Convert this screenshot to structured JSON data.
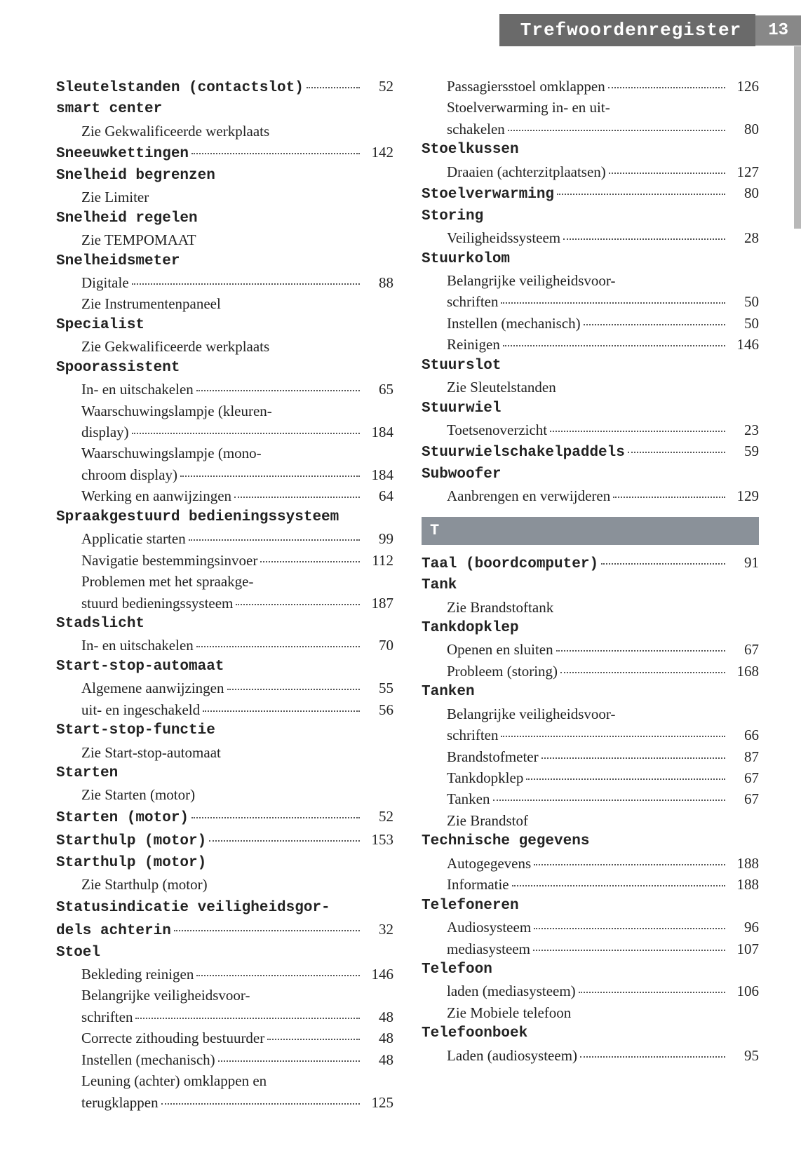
{
  "header": {
    "title": "Trefwoordenregister",
    "page_number": "13"
  },
  "colors": {
    "header_bg": "#6a6a6a",
    "page_bg": "#888888",
    "section_bg": "#8a9199"
  },
  "entries": [
    {
      "type": "line",
      "bold": true,
      "label": "Sleutelstanden (contactslot)",
      "page": "52"
    },
    {
      "type": "head",
      "label": "smart center"
    },
    {
      "type": "sub-nodot",
      "label": "Zie Gekwalificeerde werkplaats"
    },
    {
      "type": "line",
      "bold": true,
      "label": "Sneeuwkettingen",
      "page": "142"
    },
    {
      "type": "head",
      "label": "Snelheid begrenzen"
    },
    {
      "type": "sub-nodot",
      "label": "Zie Limiter"
    },
    {
      "type": "head",
      "label": "Snelheid regelen"
    },
    {
      "type": "sub-nodot",
      "label": "Zie TEMPOMAAT"
    },
    {
      "type": "head",
      "label": "Snelheidsmeter"
    },
    {
      "type": "sub",
      "label": "Digitale",
      "page": "88"
    },
    {
      "type": "sub-nodot",
      "label": "Zie Instrumentenpaneel"
    },
    {
      "type": "head",
      "label": "Specialist"
    },
    {
      "type": "sub-nodot",
      "label": "Zie Gekwalificeerde werkplaats"
    },
    {
      "type": "head",
      "label": "Spoorassistent"
    },
    {
      "type": "sub",
      "label": "In- en uitschakelen",
      "page": "65"
    },
    {
      "type": "wrap",
      "l1": "Waarschuwingslampje (kleuren-",
      "l2": "display)",
      "page": "184"
    },
    {
      "type": "wrap",
      "l1": "Waarschuwingslampje (mono-",
      "l2": "chroom display)",
      "page": "184"
    },
    {
      "type": "sub",
      "label": "Werking en aanwijzingen",
      "page": "64"
    },
    {
      "type": "head",
      "label": "Spraakgestuurd bedieningssysteem"
    },
    {
      "type": "sub",
      "label": "Applicatie starten",
      "page": "99"
    },
    {
      "type": "sub",
      "label": "Navigatie bestemmingsinvoer",
      "page": "112"
    },
    {
      "type": "wrap",
      "l1": "Problemen met het spraakge-",
      "l2": "stuurd bedieningssysteem",
      "page": "187"
    },
    {
      "type": "head",
      "label": "Stadslicht"
    },
    {
      "type": "sub",
      "label": "In- en uitschakelen",
      "page": "70"
    },
    {
      "type": "head",
      "label": "Start-stop-automaat"
    },
    {
      "type": "sub",
      "label": "Algemene aanwijzingen",
      "page": "55"
    },
    {
      "type": "sub",
      "label": "uit- en ingeschakeld",
      "page": "56"
    },
    {
      "type": "head",
      "label": "Start-stop-functie"
    },
    {
      "type": "sub-nodot",
      "label": "Zie Start-stop-automaat"
    },
    {
      "type": "head",
      "label": "Starten"
    },
    {
      "type": "sub-nodot",
      "label": "Zie Starten (motor)"
    },
    {
      "type": "line",
      "bold": true,
      "label": "Starten (motor)",
      "page": "52"
    },
    {
      "type": "line",
      "bold": true,
      "label": "Starthulp (motor)",
      "page": "153"
    },
    {
      "type": "head",
      "label": "Starthulp (motor)"
    },
    {
      "type": "sub-nodot",
      "label": "Zie Starthulp (motor)"
    },
    {
      "type": "wrap-bold",
      "l1": "Statusindicatie veiligheidsgor-",
      "l2": "dels achterin",
      "page": "32"
    },
    {
      "type": "head",
      "label": "Stoel"
    },
    {
      "type": "sub",
      "label": "Bekleding reinigen",
      "page": "146"
    },
    {
      "type": "wrap",
      "l1": "Belangrijke veiligheidsvoor-",
      "l2": "schriften",
      "page": "48"
    },
    {
      "type": "sub",
      "label": "Correcte zithouding bestuurder",
      "page": "48"
    },
    {
      "type": "sub",
      "label": "Instellen (mechanisch)",
      "page": "48"
    },
    {
      "type": "wrap",
      "l1": "Leuning (achter) omklappen en",
      "l2": "terugklappen",
      "page": "125"
    },
    {
      "type": "sub",
      "label": "Passagiersstoel omklappen",
      "page": "126"
    },
    {
      "type": "wrap",
      "l1": "Stoelverwarming in- en uit-",
      "l2": "schakelen",
      "page": "80"
    },
    {
      "type": "head",
      "label": "Stoelkussen"
    },
    {
      "type": "sub",
      "label": "Draaien (achterzitplaatsen)",
      "page": "127"
    },
    {
      "type": "line",
      "bold": true,
      "label": "Stoelverwarming",
      "page": "80"
    },
    {
      "type": "head",
      "label": "Storing"
    },
    {
      "type": "sub",
      "label": "Veiligheidssysteem",
      "page": "28"
    },
    {
      "type": "head",
      "label": "Stuurkolom"
    },
    {
      "type": "wrap",
      "l1": "Belangrijke veiligheidsvoor-",
      "l2": "schriften",
      "page": "50"
    },
    {
      "type": "sub",
      "label": "Instellen (mechanisch)",
      "page": "50"
    },
    {
      "type": "sub",
      "label": "Reinigen",
      "page": "146"
    },
    {
      "type": "head",
      "label": "Stuurslot"
    },
    {
      "type": "sub-nodot",
      "label": "Zie Sleutelstanden"
    },
    {
      "type": "head",
      "label": "Stuurwiel"
    },
    {
      "type": "sub",
      "label": "Toetsenoverzicht",
      "page": "23"
    },
    {
      "type": "line",
      "bold": true,
      "label": "Stuurwielschakelpaddels",
      "page": "59"
    },
    {
      "type": "head",
      "label": "Subwoofer"
    },
    {
      "type": "sub",
      "label": "Aanbrengen en verwijderen",
      "page": "129"
    },
    {
      "type": "section",
      "letter": "T"
    },
    {
      "type": "line",
      "bold": true,
      "label": "Taal (boordcomputer)",
      "page": "91"
    },
    {
      "type": "head",
      "label": "Tank"
    },
    {
      "type": "sub-nodot",
      "label": "Zie Brandstoftank"
    },
    {
      "type": "head",
      "label": "Tankdopklep"
    },
    {
      "type": "sub",
      "label": "Openen en sluiten",
      "page": "67"
    },
    {
      "type": "sub",
      "label": "Probleem (storing)",
      "page": "168"
    },
    {
      "type": "head",
      "label": "Tanken"
    },
    {
      "type": "wrap",
      "l1": "Belangrijke veiligheidsvoor-",
      "l2": "schriften",
      "page": "66"
    },
    {
      "type": "sub",
      "label": "Brandstofmeter",
      "page": "87"
    },
    {
      "type": "sub",
      "label": "Tankdopklep",
      "page": "67"
    },
    {
      "type": "sub",
      "label": "Tanken",
      "page": "67"
    },
    {
      "type": "sub-nodot",
      "label": "Zie Brandstof"
    },
    {
      "type": "head",
      "label": "Technische gegevens"
    },
    {
      "type": "sub",
      "label": "Autogegevens",
      "page": "188"
    },
    {
      "type": "sub",
      "label": "Informatie",
      "page": "188"
    },
    {
      "type": "head",
      "label": "Telefoneren"
    },
    {
      "type": "sub",
      "label": "Audiosysteem",
      "page": "96"
    },
    {
      "type": "sub",
      "label": "mediasysteem",
      "page": "107"
    },
    {
      "type": "head",
      "label": "Telefoon"
    },
    {
      "type": "sub",
      "label": "laden (mediasysteem)",
      "page": "106"
    },
    {
      "type": "sub-nodot",
      "label": "Zie Mobiele telefoon"
    },
    {
      "type": "head",
      "label": "Telefoonboek"
    },
    {
      "type": "sub",
      "label": "Laden (audiosysteem)",
      "page": "95"
    }
  ]
}
